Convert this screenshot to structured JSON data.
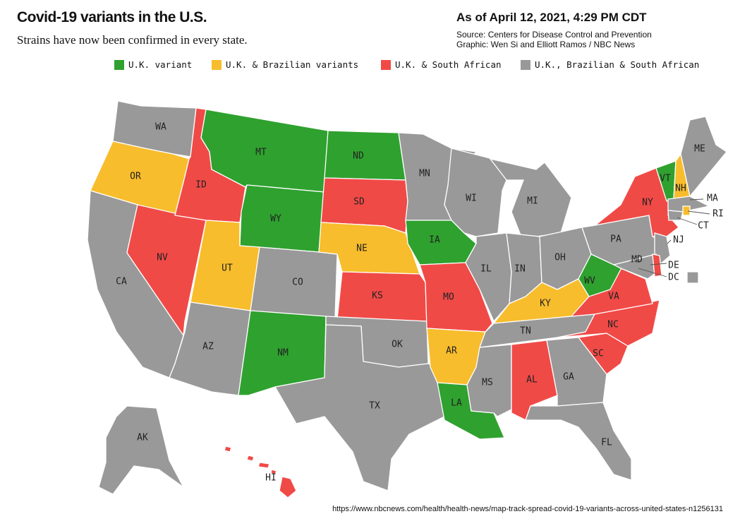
{
  "header": {
    "title": "Covid-19 variants in the U.S.",
    "subtitle": "Strains have now been confirmed in every state.",
    "as_of": "As of April 12, 2021, 4:29 PM CDT",
    "source": "Source: Centers for Disease Control and Prevention",
    "graphic": "Graphic: Wen Si and Elliott Ramos / NBC News"
  },
  "legend": [
    {
      "key": "uk",
      "label": "U.K. variant",
      "color": "#2fa12f"
    },
    {
      "key": "uk_br",
      "label": "U.K. & Brazilian variants",
      "color": "#f8bd2c"
    },
    {
      "key": "uk_sa",
      "label": "U.K. & South African",
      "color": "#f04a47"
    },
    {
      "key": "all",
      "label": "U.K., Brazilian & South African",
      "color": "#999999"
    }
  ],
  "states": {
    "WA": "all",
    "OR": "uk_br",
    "CA": "all",
    "NV": "uk_sa",
    "ID": "uk_sa",
    "MT": "uk",
    "WY": "uk",
    "UT": "uk_br",
    "AZ": "all",
    "CO": "all",
    "NM": "uk",
    "ND": "uk",
    "SD": "uk_sa",
    "NE": "uk_br",
    "KS": "uk_sa",
    "OK": "all",
    "TX": "all",
    "MN": "all",
    "IA": "uk",
    "MO": "uk_sa",
    "AR": "uk_br",
    "LA": "uk",
    "WI": "all",
    "IL": "all",
    "MI": "all",
    "IN": "all",
    "OH": "all",
    "KY": "uk_br",
    "TN": "all",
    "MS": "all",
    "AL": "uk_sa",
    "GA": "all",
    "FL": "all",
    "SC": "uk_sa",
    "NC": "uk_sa",
    "VA": "uk_sa",
    "WV": "uk",
    "PA": "all",
    "NY": "uk_sa",
    "VT": "uk",
    "NH": "uk_br",
    "ME": "all",
    "MA": "all",
    "RI": "uk_br",
    "CT": "all",
    "NJ": "all",
    "DE": "uk_sa",
    "MD": "all",
    "DC": "all",
    "AK": "all",
    "HI": "uk_sa"
  },
  "url": "https://www.nbcnews.com/health/health-news/map-track-spread-covid-19-variants-across-united-states-n1256131"
}
